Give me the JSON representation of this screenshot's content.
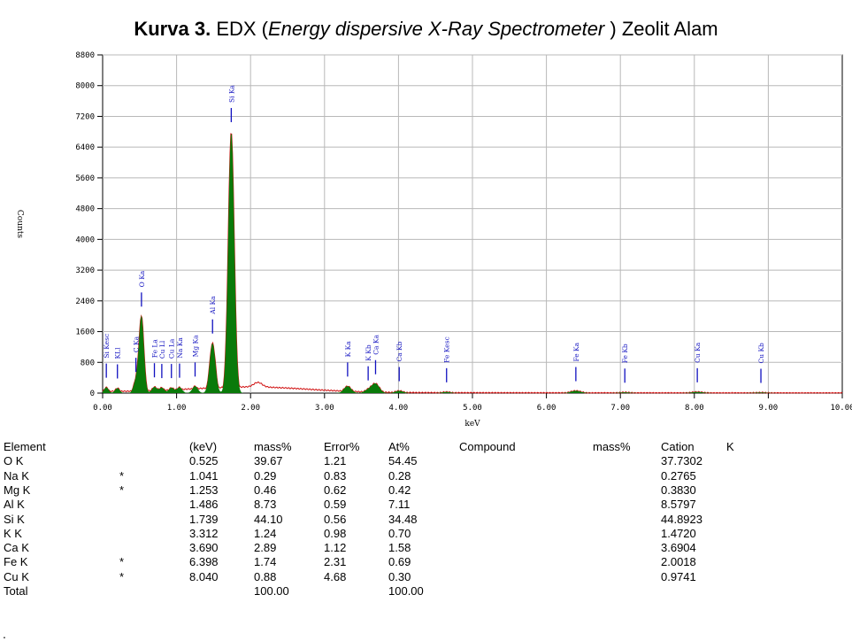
{
  "title": {
    "bold": "Kurva 3.",
    "pre": "EDX (",
    "italic": "Energy dispersive X-Ray Spectrometer",
    "post": " ) Zeolit Alam"
  },
  "chart_data": {
    "type": "line",
    "xlabel": "keV",
    "ylabel": "Counts",
    "xlim": [
      0,
      10
    ],
    "ylim": [
      0,
      8800
    ],
    "xticks": [
      "0.00",
      "1.00",
      "2.00",
      "3.00",
      "4.00",
      "5.00",
      "6.00",
      "7.00",
      "8.00",
      "9.00",
      "10.00"
    ],
    "yticks": [
      "0",
      "800",
      "1600",
      "2400",
      "3200",
      "4000",
      "4800",
      "5600",
      "6400",
      "7200",
      "8000",
      "8800"
    ],
    "grid": true,
    "peaks": [
      {
        "label": "Si Kesc",
        "x": 0.05,
        "counts": 150
      },
      {
        "label": "KLl",
        "x": 0.2,
        "counts": 130
      },
      {
        "label": "C Ka",
        "x": 0.45,
        "counts": 300
      },
      {
        "label": "O Ka",
        "x": 0.525,
        "counts": 2000
      },
      {
        "label": "Fe La",
        "x": 0.7,
        "counts": 160
      },
      {
        "label": "Cu Ll",
        "x": 0.8,
        "counts": 140
      },
      {
        "label": "Cu La",
        "x": 0.93,
        "counts": 140
      },
      {
        "label": "Na Ka",
        "x": 1.04,
        "counts": 150
      },
      {
        "label": "Mg Ka",
        "x": 1.25,
        "counts": 180
      },
      {
        "label": "Al Ka",
        "x": 1.486,
        "counts": 1300
      },
      {
        "label": "Si Ka",
        "x": 1.739,
        "counts": 6800
      },
      {
        "label": "K Ka",
        "x": 3.312,
        "counts": 180
      },
      {
        "label": "K Kb",
        "x": 3.59,
        "counts": 80
      },
      {
        "label": "Ca Ka",
        "x": 3.69,
        "counts": 240
      },
      {
        "label": "Ca Kb",
        "x": 4.01,
        "counts": 60
      },
      {
        "label": "Fe Kesc",
        "x": 4.65,
        "counts": 30
      },
      {
        "label": "Fe Ka",
        "x": 6.398,
        "counts": 60
      },
      {
        "label": "Fe Kb",
        "x": 7.06,
        "counts": 20
      },
      {
        "label": "Cu Ka",
        "x": 8.04,
        "counts": 30
      },
      {
        "label": "Cu Kb",
        "x": 8.9,
        "counts": 15
      }
    ]
  },
  "table": {
    "headers": [
      "Element",
      "(keV)",
      "mass%",
      "Error%",
      "At%",
      "Compound",
      "mass%",
      "Cation",
      "K"
    ],
    "rows": [
      {
        "element": "O K",
        "flag": "",
        "kev": "0.525",
        "mass": "39.67",
        "error": "1.21",
        "at": "54.45",
        "cation": "37.7302"
      },
      {
        "element": "Na K",
        "flag": "*",
        "kev": "1.041",
        "mass": "0.29",
        "error": "0.83",
        "at": "0.28",
        "cation": "0.2765"
      },
      {
        "element": "Mg K",
        "flag": "*",
        "kev": "1.253",
        "mass": "0.46",
        "error": "0.62",
        "at": "0.42",
        "cation": "0.3830"
      },
      {
        "element": "Al K",
        "flag": "",
        "kev": "1.486",
        "mass": "8.73",
        "error": "0.59",
        "at": "7.11",
        "cation": "8.5797"
      },
      {
        "element": "Si K",
        "flag": "",
        "kev": "1.739",
        "mass": "44.10",
        "error": "0.56",
        "at": "34.48",
        "cation": "44.8923"
      },
      {
        "element": "K K",
        "flag": "",
        "kev": "3.312",
        "mass": "1.24",
        "error": "0.98",
        "at": "0.70",
        "cation": "1.4720"
      },
      {
        "element": "Ca K",
        "flag": "",
        "kev": "3.690",
        "mass": "2.89",
        "error": "1.12",
        "at": "1.58",
        "cation": "3.6904"
      },
      {
        "element": "Fe K",
        "flag": "*",
        "kev": "6.398",
        "mass": "1.74",
        "error": "2.31",
        "at": "0.69",
        "cation": "2.0018"
      },
      {
        "element": "Cu K",
        "flag": "*",
        "kev": "8.040",
        "mass": "0.88",
        "error": "4.68",
        "at": "0.30",
        "cation": "0.9741"
      }
    ],
    "total": {
      "label": "Total",
      "mass": "100.00",
      "at": "100.00"
    }
  },
  "leading_mark": ".",
  "colors": {
    "fill": "#0a7a0a",
    "trace": "#d01010",
    "marker": "#1010c0",
    "grid": "#b8b8b8"
  }
}
